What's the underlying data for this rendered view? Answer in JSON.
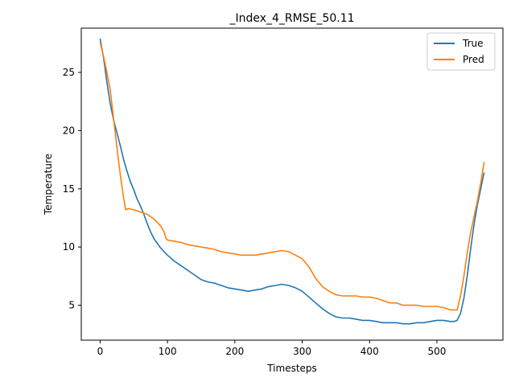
{
  "chart_data": {
    "type": "line",
    "title": "_Index_4_RMSE_50.11",
    "xlabel": "Timesteps",
    "ylabel": "Temperature",
    "xlim": [
      -28,
      598
    ],
    "ylim": [
      2.0,
      28.8
    ],
    "xticks": [
      0,
      100,
      200,
      300,
      400,
      500
    ],
    "yticks": [
      5,
      10,
      15,
      20,
      25
    ],
    "grid": false,
    "legend": "top-right",
    "series": [
      {
        "name": "True",
        "color": "#1f77b4",
        "points": [
          [
            0,
            27.9
          ],
          [
            5,
            26.3
          ],
          [
            10,
            24.2
          ],
          [
            15,
            22.3
          ],
          [
            20,
            20.9
          ],
          [
            25,
            19.8
          ],
          [
            30,
            18.7
          ],
          [
            35,
            17.5
          ],
          [
            40,
            16.5
          ],
          [
            45,
            15.6
          ],
          [
            50,
            14.9
          ],
          [
            55,
            14.1
          ],
          [
            60,
            13.5
          ],
          [
            65,
            12.8
          ],
          [
            70,
            12.0
          ],
          [
            75,
            11.3
          ],
          [
            80,
            10.7
          ],
          [
            85,
            10.3
          ],
          [
            90,
            9.9
          ],
          [
            95,
            9.6
          ],
          [
            100,
            9.3
          ],
          [
            110,
            8.8
          ],
          [
            120,
            8.4
          ],
          [
            130,
            8.0
          ],
          [
            140,
            7.6
          ],
          [
            150,
            7.2
          ],
          [
            160,
            7.0
          ],
          [
            170,
            6.9
          ],
          [
            180,
            6.7
          ],
          [
            190,
            6.5
          ],
          [
            200,
            6.4
          ],
          [
            210,
            6.3
          ],
          [
            220,
            6.2
          ],
          [
            230,
            6.3
          ],
          [
            240,
            6.4
          ],
          [
            250,
            6.6
          ],
          [
            260,
            6.7
          ],
          [
            270,
            6.8
          ],
          [
            280,
            6.7
          ],
          [
            290,
            6.5
          ],
          [
            300,
            6.2
          ],
          [
            310,
            5.7
          ],
          [
            320,
            5.2
          ],
          [
            330,
            4.7
          ],
          [
            340,
            4.3
          ],
          [
            350,
            4.0
          ],
          [
            360,
            3.9
          ],
          [
            370,
            3.9
          ],
          [
            380,
            3.8
          ],
          [
            390,
            3.7
          ],
          [
            400,
            3.7
          ],
          [
            410,
            3.6
          ],
          [
            420,
            3.5
          ],
          [
            430,
            3.5
          ],
          [
            440,
            3.5
          ],
          [
            450,
            3.4
          ],
          [
            460,
            3.4
          ],
          [
            470,
            3.5
          ],
          [
            480,
            3.5
          ],
          [
            490,
            3.6
          ],
          [
            500,
            3.7
          ],
          [
            510,
            3.7
          ],
          [
            520,
            3.6
          ],
          [
            525,
            3.6
          ],
          [
            530,
            3.7
          ],
          [
            535,
            4.3
          ],
          [
            540,
            5.6
          ],
          [
            545,
            7.5
          ],
          [
            550,
            9.8
          ],
          [
            555,
            11.9
          ],
          [
            560,
            13.6
          ],
          [
            565,
            15.0
          ],
          [
            570,
            16.4
          ]
        ]
      },
      {
        "name": "Pred",
        "color": "#ff7f0e",
        "points": [
          [
            0,
            27.6
          ],
          [
            5,
            26.4
          ],
          [
            10,
            25.0
          ],
          [
            15,
            23.5
          ],
          [
            20,
            21.0
          ],
          [
            25,
            18.5
          ],
          [
            30,
            16.2
          ],
          [
            35,
            14.2
          ],
          [
            38,
            13.2
          ],
          [
            42,
            13.3
          ],
          [
            50,
            13.2
          ],
          [
            60,
            13.0
          ],
          [
            70,
            12.8
          ],
          [
            80,
            12.4
          ],
          [
            90,
            11.8
          ],
          [
            95,
            11.3
          ],
          [
            98,
            10.7
          ],
          [
            100,
            10.6
          ],
          [
            110,
            10.5
          ],
          [
            120,
            10.4
          ],
          [
            130,
            10.2
          ],
          [
            140,
            10.1
          ],
          [
            150,
            10.0
          ],
          [
            160,
            9.9
          ],
          [
            170,
            9.8
          ],
          [
            180,
            9.6
          ],
          [
            190,
            9.5
          ],
          [
            200,
            9.4
          ],
          [
            210,
            9.3
          ],
          [
            220,
            9.3
          ],
          [
            230,
            9.3
          ],
          [
            240,
            9.4
          ],
          [
            250,
            9.5
          ],
          [
            260,
            9.6
          ],
          [
            270,
            9.7
          ],
          [
            280,
            9.6
          ],
          [
            290,
            9.3
          ],
          [
            300,
            9.0
          ],
          [
            310,
            8.3
          ],
          [
            320,
            7.3
          ],
          [
            330,
            6.6
          ],
          [
            340,
            6.2
          ],
          [
            350,
            5.9
          ],
          [
            360,
            5.8
          ],
          [
            370,
            5.8
          ],
          [
            380,
            5.8
          ],
          [
            390,
            5.7
          ],
          [
            400,
            5.7
          ],
          [
            410,
            5.6
          ],
          [
            420,
            5.4
          ],
          [
            430,
            5.2
          ],
          [
            440,
            5.2
          ],
          [
            450,
            5.0
          ],
          [
            460,
            5.0
          ],
          [
            470,
            5.0
          ],
          [
            480,
            4.9
          ],
          [
            490,
            4.9
          ],
          [
            500,
            4.9
          ],
          [
            510,
            4.8
          ],
          [
            520,
            4.6
          ],
          [
            525,
            4.6
          ],
          [
            530,
            4.6
          ],
          [
            535,
            5.8
          ],
          [
            540,
            7.5
          ],
          [
            545,
            9.5
          ],
          [
            550,
            11.2
          ],
          [
            555,
            12.6
          ],
          [
            560,
            13.9
          ],
          [
            565,
            15.5
          ],
          [
            570,
            17.3
          ]
        ]
      }
    ]
  }
}
